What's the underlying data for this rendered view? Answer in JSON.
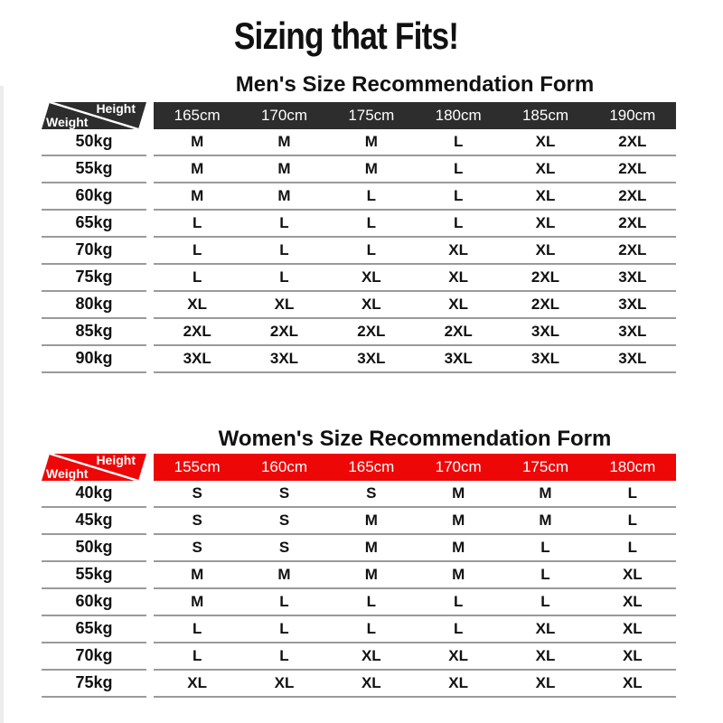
{
  "page_title": "Sizing that Fits!",
  "colors": {
    "mens_header": "#2d2d2d",
    "womens_header": "#ee0707",
    "row_divider": "#9a9a9a",
    "header_text": "#ffffff",
    "body_text": "#111111"
  },
  "chart_data": [
    {
      "type": "table",
      "title": "Men's Size Recommendation Form",
      "corner": {
        "height": "Height",
        "weight": "Weight"
      },
      "header_color": "#2d2d2d",
      "columns": [
        "165cm",
        "170cm",
        "175cm",
        "180cm",
        "185cm",
        "190cm"
      ],
      "rows": [
        {
          "weight": "50kg",
          "sizes": [
            "M",
            "M",
            "M",
            "L",
            "XL",
            "2XL"
          ]
        },
        {
          "weight": "55kg",
          "sizes": [
            "M",
            "M",
            "M",
            "L",
            "XL",
            "2XL"
          ]
        },
        {
          "weight": "60kg",
          "sizes": [
            "M",
            "M",
            "L",
            "L",
            "XL",
            "2XL"
          ]
        },
        {
          "weight": "65kg",
          "sizes": [
            "L",
            "L",
            "L",
            "L",
            "XL",
            "2XL"
          ]
        },
        {
          "weight": "70kg",
          "sizes": [
            "L",
            "L",
            "L",
            "XL",
            "XL",
            "2XL"
          ]
        },
        {
          "weight": "75kg",
          "sizes": [
            "L",
            "L",
            "XL",
            "XL",
            "2XL",
            "3XL"
          ]
        },
        {
          "weight": "80kg",
          "sizes": [
            "XL",
            "XL",
            "XL",
            "XL",
            "2XL",
            "3XL"
          ]
        },
        {
          "weight": "85kg",
          "sizes": [
            "2XL",
            "2XL",
            "2XL",
            "2XL",
            "3XL",
            "3XL"
          ]
        },
        {
          "weight": "90kg",
          "sizes": [
            "3XL",
            "3XL",
            "3XL",
            "3XL",
            "3XL",
            "3XL"
          ]
        }
      ]
    },
    {
      "type": "table",
      "title": "Women's Size Recommendation Form",
      "corner": {
        "height": "Height",
        "weight": "Weight"
      },
      "header_color": "#ee0707",
      "columns": [
        "155cm",
        "160cm",
        "165cm",
        "170cm",
        "175cm",
        "180cm"
      ],
      "rows": [
        {
          "weight": "40kg",
          "sizes": [
            "S",
            "S",
            "S",
            "M",
            "M",
            "L"
          ]
        },
        {
          "weight": "45kg",
          "sizes": [
            "S",
            "S",
            "M",
            "M",
            "M",
            "L"
          ]
        },
        {
          "weight": "50kg",
          "sizes": [
            "S",
            "S",
            "M",
            "M",
            "L",
            "L"
          ]
        },
        {
          "weight": "55kg",
          "sizes": [
            "M",
            "M",
            "M",
            "M",
            "L",
            "XL"
          ]
        },
        {
          "weight": "60kg",
          "sizes": [
            "M",
            "L",
            "L",
            "L",
            "L",
            "XL"
          ]
        },
        {
          "weight": "65kg",
          "sizes": [
            "L",
            "L",
            "L",
            "L",
            "XL",
            "XL"
          ]
        },
        {
          "weight": "70kg",
          "sizes": [
            "L",
            "L",
            "XL",
            "XL",
            "XL",
            "XL"
          ]
        },
        {
          "weight": "75kg",
          "sizes": [
            "XL",
            "XL",
            "XL",
            "XL",
            "XL",
            "XL"
          ]
        }
      ]
    }
  ]
}
